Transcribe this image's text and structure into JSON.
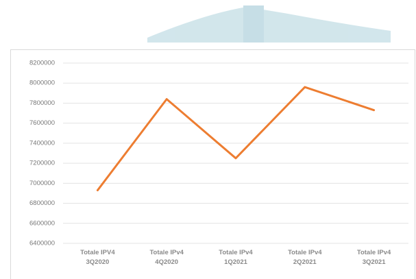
{
  "chart_data": {
    "type": "line",
    "categories": [
      "Totale IPV4 3Q2020",
      "Totale IPv4 4Q2020",
      "Totale IPv4 1Q2021",
      "Totale IPv4 2Q2021",
      "Totale IPv4 3Q2021"
    ],
    "values": [
      6930000,
      7840000,
      7250000,
      7960000,
      7730000
    ],
    "color": "#ed7d31",
    "ylim": [
      6400000,
      8200000
    ],
    "yticks": [
      6400000,
      6600000,
      6800000,
      7000000,
      7200000,
      7400000,
      7600000,
      7800000,
      8000000,
      8200000
    ],
    "grid": true
  }
}
